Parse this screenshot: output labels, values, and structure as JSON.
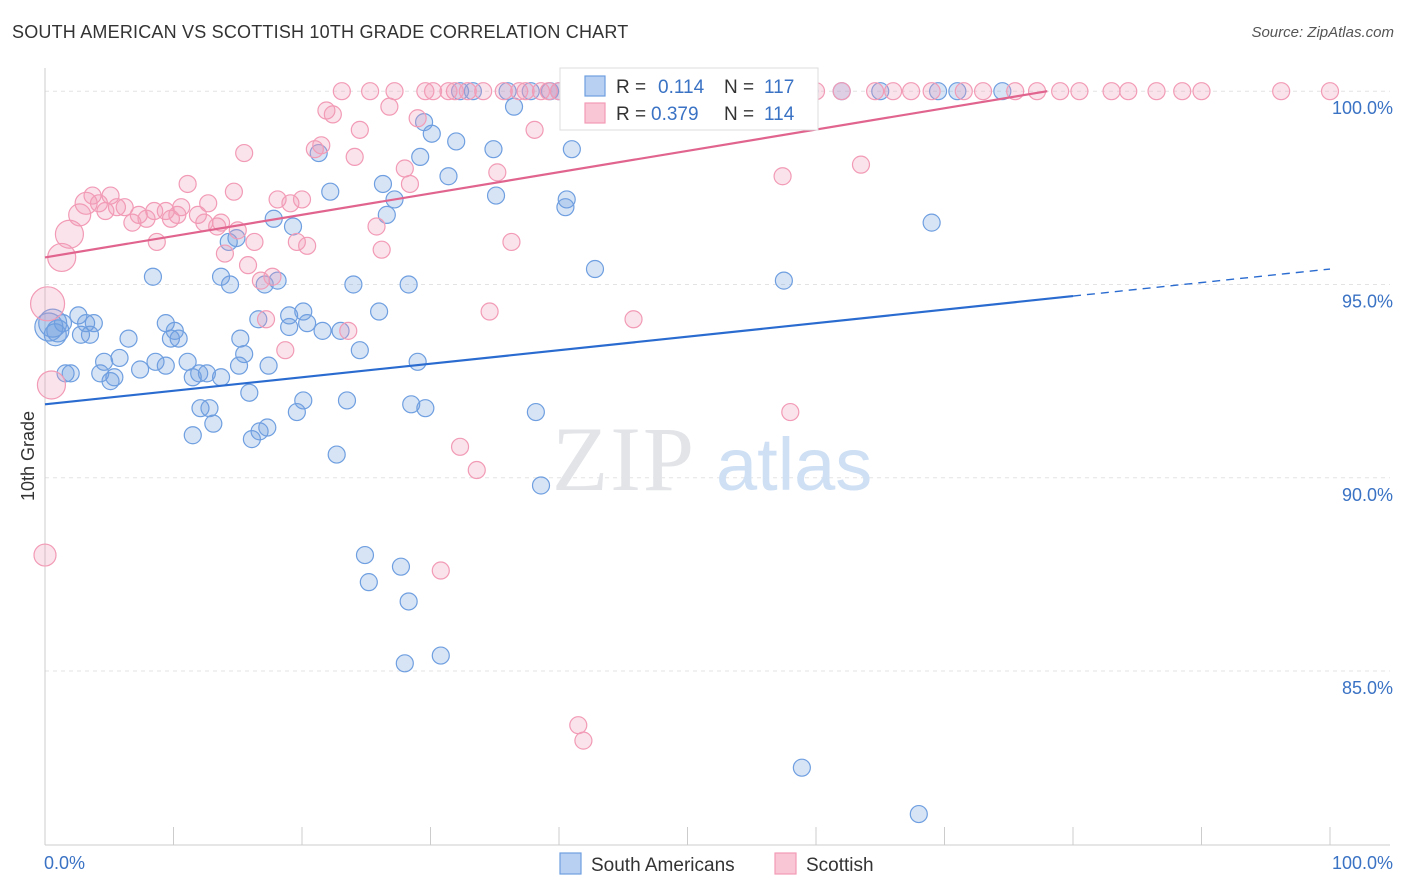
{
  "title": "SOUTH AMERICAN VS SCOTTISH 10TH GRADE CORRELATION CHART",
  "source": "Source: ZipAtlas.com",
  "watermark": {
    "zip": "ZIP",
    "atlas": "atlas"
  },
  "chart_data": {
    "type": "scatter",
    "ylabel": "10th Grade",
    "xlim": [
      0,
      100
    ],
    "ylim": [
      80.5,
      100.6
    ],
    "x_tick_labels": [
      "0.0%",
      "100.0%"
    ],
    "y_ticks": [
      100,
      95,
      90,
      85
    ],
    "y_tick_labels": [
      "100.0%",
      "95.0%",
      "90.0%",
      "85.0%"
    ],
    "grid": true,
    "legend_position": "top-center",
    "colors": {
      "south": "#6f9fe0",
      "scottish": "#f29bb6",
      "south_line": "#2a6bd0",
      "scottish_line": "#e0648e"
    },
    "stats": [
      {
        "r_label": "R =",
        "r": "0.114",
        "n_label": "N =",
        "n": "117"
      },
      {
        "r_label": "R =",
        "r": "0.379",
        "n_label": "N =",
        "n": "114"
      }
    ],
    "series": [
      {
        "name": "South Americans",
        "trend": {
          "x0": 0,
          "y0": 91.9,
          "x1": 80,
          "y1": 94.7,
          "dash_x1": 100,
          "dash_y1": 95.4
        },
        "points": [
          [
            0.3,
            93.9,
            3
          ],
          [
            0.6,
            94.0,
            3
          ],
          [
            0.8,
            93.7,
            2
          ],
          [
            1.0,
            93.8,
            2
          ],
          [
            1.4,
            94.0,
            1
          ],
          [
            1.6,
            92.7,
            1
          ],
          [
            2.0,
            92.7,
            1
          ],
          [
            2.6,
            94.2,
            1
          ],
          [
            2.8,
            93.7,
            1
          ],
          [
            3.2,
            94.0,
            1
          ],
          [
            3.5,
            93.7,
            1
          ],
          [
            3.8,
            94.0,
            1
          ],
          [
            4.3,
            92.7,
            1
          ],
          [
            4.6,
            93.0,
            1
          ],
          [
            5.1,
            92.5,
            1
          ],
          [
            5.4,
            92.6,
            1
          ],
          [
            5.8,
            93.1,
            1
          ],
          [
            6.5,
            93.6,
            1
          ],
          [
            7.4,
            92.8,
            1
          ],
          [
            8.4,
            95.2,
            1
          ],
          [
            8.6,
            93.0,
            1
          ],
          [
            9.4,
            94.0,
            1
          ],
          [
            9.4,
            92.9,
            1
          ],
          [
            9.8,
            93.6,
            1
          ],
          [
            10.1,
            93.8,
            1
          ],
          [
            10.4,
            93.6,
            1
          ],
          [
            11.1,
            93.0,
            1
          ],
          [
            11.5,
            92.6,
            1
          ],
          [
            12.0,
            92.7,
            1
          ],
          [
            12.1,
            91.8,
            1
          ],
          [
            11.5,
            91.1,
            1
          ],
          [
            12.6,
            92.7,
            1
          ],
          [
            12.8,
            91.8,
            1
          ],
          [
            13.1,
            91.4,
            1
          ],
          [
            13.7,
            95.2,
            1
          ],
          [
            13.7,
            92.6,
            1
          ],
          [
            14.4,
            95.0,
            1
          ],
          [
            14.3,
            96.1,
            1
          ],
          [
            14.9,
            96.2,
            1
          ],
          [
            15.2,
            93.6,
            1
          ],
          [
            15.1,
            92.9,
            1
          ],
          [
            15.5,
            93.2,
            1
          ],
          [
            15.9,
            92.2,
            1
          ],
          [
            16.1,
            91.0,
            1
          ],
          [
            16.6,
            94.1,
            1
          ],
          [
            16.7,
            91.2,
            1
          ],
          [
            17.1,
            95.0,
            1
          ],
          [
            17.3,
            91.3,
            1
          ],
          [
            17.4,
            92.9,
            1
          ],
          [
            17.8,
            96.7,
            1
          ],
          [
            18.1,
            95.1,
            1
          ],
          [
            19.0,
            94.2,
            1
          ],
          [
            19.0,
            93.9,
            1
          ],
          [
            19.6,
            91.7,
            1
          ],
          [
            20.1,
            92.0,
            1
          ],
          [
            20.1,
            94.3,
            1
          ],
          [
            20.4,
            94.0,
            1
          ],
          [
            21.3,
            98.4,
            1
          ],
          [
            22.2,
            97.4,
            1
          ],
          [
            22.7,
            90.6,
            1
          ],
          [
            23.0,
            93.8,
            1
          ],
          [
            23.5,
            92.0,
            1
          ],
          [
            24.0,
            95.0,
            1
          ],
          [
            24.5,
            93.3,
            1
          ],
          [
            24.9,
            88.0,
            1
          ],
          [
            25.2,
            87.3,
            1
          ],
          [
            26.0,
            94.3,
            1
          ],
          [
            26.3,
            97.6,
            1
          ],
          [
            26.6,
            96.8,
            1
          ],
          [
            27.2,
            97.2,
            1
          ],
          [
            27.7,
            87.7,
            1
          ],
          [
            28.0,
            85.2,
            1
          ],
          [
            28.3,
            86.8,
            1
          ],
          [
            28.3,
            95.0,
            1
          ],
          [
            28.5,
            91.9,
            1
          ],
          [
            29.0,
            93.0,
            1
          ],
          [
            29.2,
            98.3,
            1
          ],
          [
            29.5,
            99.2,
            1
          ],
          [
            29.6,
            91.8,
            1
          ],
          [
            30.1,
            98.9,
            1
          ],
          [
            30.8,
            85.4,
            1
          ],
          [
            31.4,
            97.8,
            1
          ],
          [
            32.0,
            98.7,
            1
          ],
          [
            32.3,
            100.0,
            1
          ],
          [
            33.3,
            100.0,
            1
          ],
          [
            34.9,
            98.5,
            1
          ],
          [
            35.1,
            97.3,
            1
          ],
          [
            36.0,
            100.0,
            1
          ],
          [
            36.5,
            99.6,
            1
          ],
          [
            37.8,
            100.0,
            1
          ],
          [
            38.2,
            91.7,
            1
          ],
          [
            38.6,
            89.8,
            1
          ],
          [
            39.3,
            100.0,
            1
          ],
          [
            40.0,
            100.0,
            1
          ],
          [
            40.5,
            97.0,
            1
          ],
          [
            40.6,
            97.2,
            1
          ],
          [
            41.0,
            98.5,
            1
          ],
          [
            42.8,
            95.4,
            1
          ],
          [
            44.2,
            100.0,
            1
          ],
          [
            46.5,
            100.0,
            1
          ],
          [
            49.0,
            100.0,
            1
          ],
          [
            50.5,
            100.0,
            1
          ],
          [
            52.5,
            100.0,
            1
          ],
          [
            55.0,
            100.0,
            1
          ],
          [
            57.5,
            95.1,
            1
          ],
          [
            58.9,
            82.5,
            1
          ],
          [
            59.5,
            100.0,
            1
          ],
          [
            62.0,
            100.0,
            1
          ],
          [
            65.0,
            100.0,
            1
          ],
          [
            68.0,
            81.3,
            1
          ],
          [
            69.0,
            96.6,
            1
          ],
          [
            69.5,
            100.0,
            1
          ],
          [
            71.0,
            100.0,
            1
          ],
          [
            74.5,
            100.0,
            1
          ],
          [
            19.3,
            96.5,
            1
          ],
          [
            21.6,
            93.8,
            1
          ]
        ]
      },
      {
        "name": "Scottish",
        "trend": {
          "x0": 0,
          "y0": 95.7,
          "x1": 78,
          "y1": 100.0
        },
        "points": [
          [
            0.2,
            94.5,
            4
          ],
          [
            0.5,
            92.4,
            3
          ],
          [
            0.0,
            88.0,
            2
          ],
          [
            1.3,
            95.7,
            3
          ],
          [
            1.9,
            96.3,
            3
          ],
          [
            2.7,
            96.8,
            2
          ],
          [
            3.2,
            97.1,
            2
          ],
          [
            3.7,
            97.3,
            1
          ],
          [
            4.2,
            97.1,
            1
          ],
          [
            4.7,
            96.9,
            1
          ],
          [
            5.1,
            97.3,
            1
          ],
          [
            5.6,
            97.0,
            1
          ],
          [
            6.2,
            97.0,
            1
          ],
          [
            6.8,
            96.6,
            1
          ],
          [
            7.3,
            96.8,
            1
          ],
          [
            7.9,
            96.7,
            1
          ],
          [
            8.5,
            96.9,
            1
          ],
          [
            8.7,
            96.1,
            1
          ],
          [
            9.4,
            96.9,
            1
          ],
          [
            9.8,
            96.7,
            1
          ],
          [
            10.3,
            96.8,
            1
          ],
          [
            10.6,
            97.0,
            1
          ],
          [
            11.1,
            97.6,
            1
          ],
          [
            11.9,
            96.8,
            1
          ],
          [
            12.4,
            96.6,
            1
          ],
          [
            12.7,
            97.1,
            1
          ],
          [
            13.4,
            96.5,
            1
          ],
          [
            13.7,
            96.6,
            1
          ],
          [
            14.0,
            95.8,
            1
          ],
          [
            14.7,
            97.4,
            1
          ],
          [
            15.0,
            96.4,
            1
          ],
          [
            15.5,
            98.4,
            1
          ],
          [
            15.8,
            95.5,
            1
          ],
          [
            16.3,
            96.1,
            1
          ],
          [
            16.8,
            95.1,
            1
          ],
          [
            17.2,
            94.1,
            1
          ],
          [
            17.7,
            95.2,
            1
          ],
          [
            18.1,
            97.2,
            1
          ],
          [
            18.7,
            93.3,
            1
          ],
          [
            19.1,
            97.1,
            1
          ],
          [
            19.6,
            96.1,
            1
          ],
          [
            20.0,
            97.2,
            1
          ],
          [
            20.4,
            96.0,
            1
          ],
          [
            21.0,
            98.5,
            1
          ],
          [
            21.5,
            98.6,
            1
          ],
          [
            21.9,
            99.5,
            1
          ],
          [
            22.4,
            99.4,
            1
          ],
          [
            23.1,
            100.0,
            1
          ],
          [
            23.6,
            93.8,
            1
          ],
          [
            24.1,
            98.3,
            1
          ],
          [
            24.5,
            99.0,
            1
          ],
          [
            25.3,
            100.0,
            1
          ],
          [
            25.8,
            96.5,
            1
          ],
          [
            26.2,
            95.9,
            1
          ],
          [
            26.8,
            99.6,
            1
          ],
          [
            27.2,
            100.0,
            1
          ],
          [
            28.0,
            98.0,
            1
          ],
          [
            28.4,
            97.6,
            1
          ],
          [
            29.0,
            99.3,
            1
          ],
          [
            29.6,
            100.0,
            1
          ],
          [
            30.2,
            100.0,
            1
          ],
          [
            30.8,
            87.6,
            1
          ],
          [
            31.4,
            100.0,
            1
          ],
          [
            31.9,
            100.0,
            1
          ],
          [
            32.3,
            90.8,
            1
          ],
          [
            32.9,
            100.0,
            1
          ],
          [
            33.6,
            90.2,
            1
          ],
          [
            34.1,
            100.0,
            1
          ],
          [
            34.6,
            94.3,
            1
          ],
          [
            35.2,
            97.9,
            1
          ],
          [
            35.7,
            100.0,
            1
          ],
          [
            36.3,
            96.1,
            1
          ],
          [
            36.9,
            100.0,
            1
          ],
          [
            37.4,
            100.0,
            1
          ],
          [
            38.1,
            99.0,
            1
          ],
          [
            38.6,
            100.0,
            1
          ],
          [
            39.2,
            100.0,
            1
          ],
          [
            40.0,
            100.0,
            1
          ],
          [
            41.0,
            100.0,
            1
          ],
          [
            41.5,
            83.6,
            1
          ],
          [
            41.9,
            83.2,
            1
          ],
          [
            43.0,
            100.0,
            1
          ],
          [
            44.5,
            100.0,
            1
          ],
          [
            45.7,
            100.0,
            1
          ],
          [
            47.0,
            100.0,
            1
          ],
          [
            49.2,
            100.0,
            1
          ],
          [
            51.0,
            100.0,
            1
          ],
          [
            52.5,
            100.0,
            1
          ],
          [
            54.5,
            100.0,
            1
          ],
          [
            56.0,
            100.0,
            1
          ],
          [
            57.4,
            97.8,
            1
          ],
          [
            58.0,
            91.7,
            1
          ],
          [
            60.0,
            100.0,
            1
          ],
          [
            62.0,
            100.0,
            1
          ],
          [
            63.5,
            98.1,
            1
          ],
          [
            64.6,
            100.0,
            1
          ],
          [
            66.0,
            100.0,
            1
          ],
          [
            67.4,
            100.0,
            1
          ],
          [
            69.0,
            100.0,
            1
          ],
          [
            71.5,
            100.0,
            1
          ],
          [
            73.0,
            100.0,
            1
          ],
          [
            75.5,
            100.0,
            1
          ],
          [
            77.2,
            100.0,
            1
          ],
          [
            79.0,
            100.0,
            1
          ],
          [
            80.5,
            100.0,
            1
          ],
          [
            83.0,
            100.0,
            1
          ],
          [
            84.3,
            100.0,
            1
          ],
          [
            86.5,
            100.0,
            1
          ],
          [
            88.5,
            100.0,
            1
          ],
          [
            90.0,
            100.0,
            1
          ],
          [
            96.2,
            100.0,
            1
          ],
          [
            100.0,
            100.0,
            1
          ],
          [
            45.8,
            94.1,
            1
          ],
          [
            48.9,
            100.0,
            1
          ],
          [
            53.9,
            100.0,
            1
          ]
        ]
      }
    ]
  }
}
